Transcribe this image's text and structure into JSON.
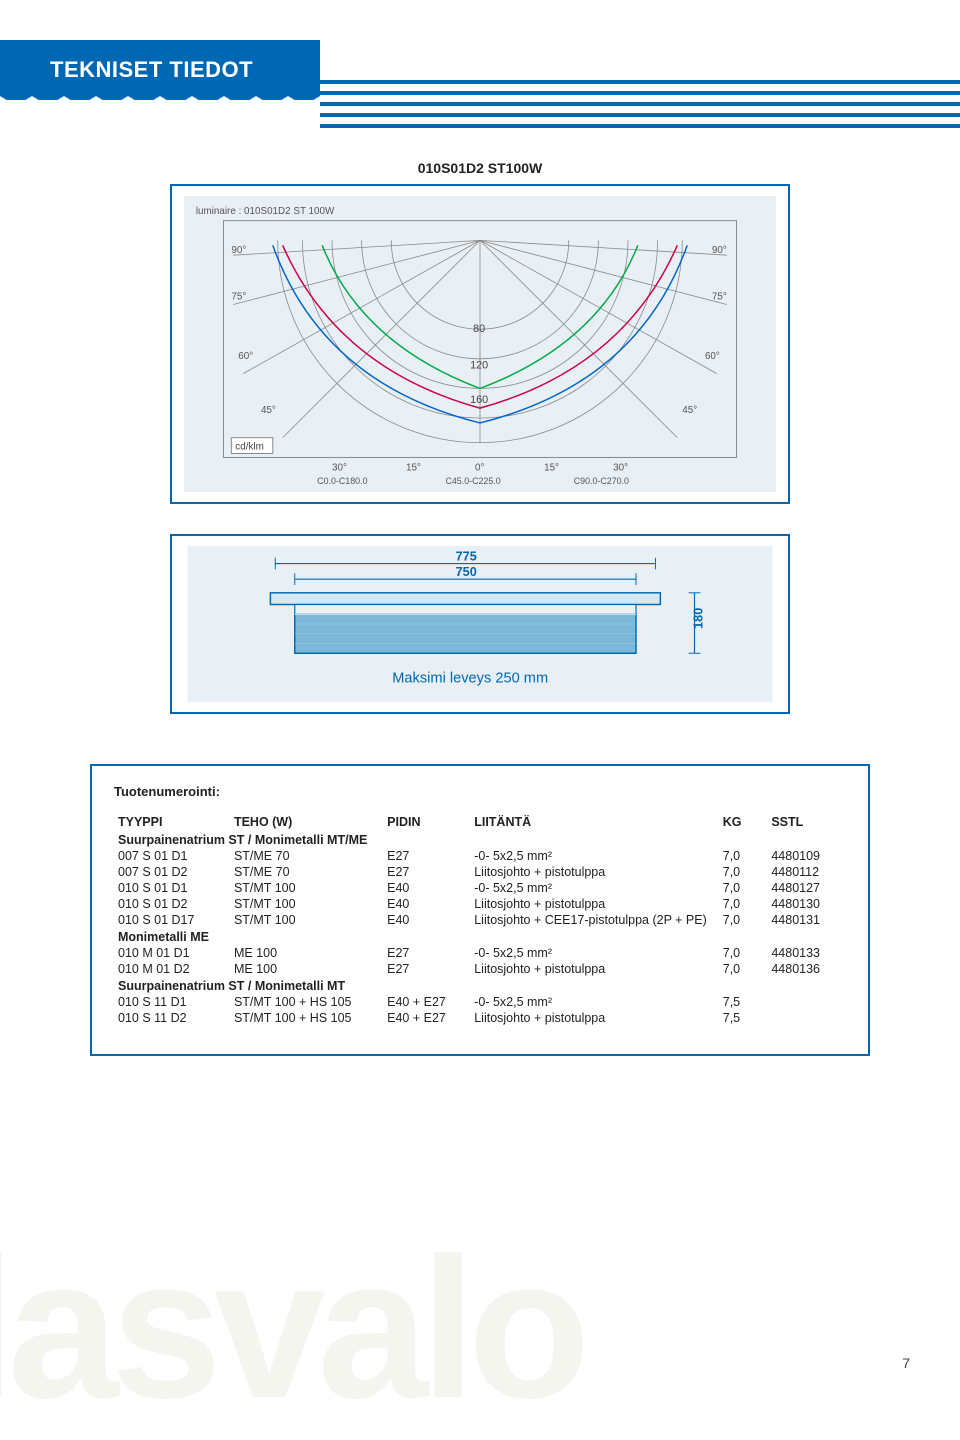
{
  "header": {
    "title": "TEKNISET TIEDOT"
  },
  "product": {
    "label": "010S01D2 ST100W"
  },
  "polar_diagram": {
    "type": "polar-light-distribution",
    "background_color": "#e8eff5",
    "border_color": "#0068b3",
    "grid_color": "#808080",
    "curve_colors": [
      "#0066cc",
      "#cc0044",
      "#00aa44"
    ],
    "angle_labels": [
      "90°",
      "75°",
      "60°",
      "45°"
    ],
    "radial_labels": [
      "80",
      "120",
      "160"
    ],
    "unit_label": "cd/klm",
    "c_plane_labels": [
      "C0.0-C180.0",
      "C45.0-C225.0",
      "C90.0-C270.0"
    ],
    "axis_labels": [
      "30°",
      "15°",
      "0°",
      "15°",
      "30°"
    ],
    "luminaire_label": "luminaire : 010S01D2 ST 100W"
  },
  "dimension_diagram": {
    "type": "technical-drawing",
    "background_color": "#e8eff5",
    "border_color": "#0068b3",
    "line_color": "#0068b3",
    "fixture_fill": "#7db8d8",
    "dim_775": "775",
    "dim_750": "750",
    "dim_180": "180",
    "caption": "Maksimi leveys 250 mm"
  },
  "table": {
    "title": "Tuotenumerointi:",
    "columns": [
      "TYYPPI",
      "TEHO (W)",
      "PIDIN",
      "LIITÄNTÄ",
      "KG",
      "SSTL"
    ],
    "sections": [
      {
        "heading": "Suurpainenatrium ST / Monimetalli MT/ME",
        "rows": [
          [
            "007 S 01 D1",
            "ST/ME 70",
            "E27",
            "-0- 5x2,5 mm²",
            "7,0",
            "4480109"
          ],
          [
            "007 S 01 D2",
            "ST/ME 70",
            "E27",
            "Liitosjohto + pistotulppa",
            "7,0",
            "4480112"
          ],
          [
            "010 S 01 D1",
            "ST/MT 100",
            "E40",
            "-0- 5x2,5 mm²",
            "7,0",
            "4480127"
          ],
          [
            "010 S 01 D2",
            "ST/MT 100",
            "E40",
            "Liitosjohto + pistotulppa",
            "7,0",
            "4480130"
          ],
          [
            "010 S 01 D17",
            "ST/MT 100",
            "E40",
            "Liitosjohto + CEE17-pistotulppa (2P + PE)",
            "7,0",
            "4480131"
          ]
        ]
      },
      {
        "heading": "Monimetalli ME",
        "rows": [
          [
            "010 M 01 D1",
            "ME 100",
            "E27",
            "-0- 5x2,5 mm²",
            "7,0",
            "4480133"
          ],
          [
            "010 M 01 D2",
            "ME 100",
            "E27",
            "Liitosjohto + pistotulppa",
            "7,0",
            "4480136"
          ]
        ]
      },
      {
        "heading": "Suurpainenatrium ST / Monimetalli MT",
        "rows": [
          [
            "010 S 11 D1",
            "ST/MT 100 + HS 105",
            "E40 + E27",
            "-0- 5x2,5 mm²",
            "7,5",
            ""
          ],
          [
            "010 S 11 D2",
            "ST/MT 100 + HS 105",
            "E40 + E27",
            "Liitosjohto + pistotulppa",
            "7,5",
            ""
          ]
        ]
      }
    ]
  },
  "watermark": "lasvalo",
  "page_number": "7",
  "colors": {
    "brand_blue": "#0068b3",
    "diagram_bg": "#e8eff5",
    "text": "#222222",
    "watermark": "#f5f5f0"
  }
}
